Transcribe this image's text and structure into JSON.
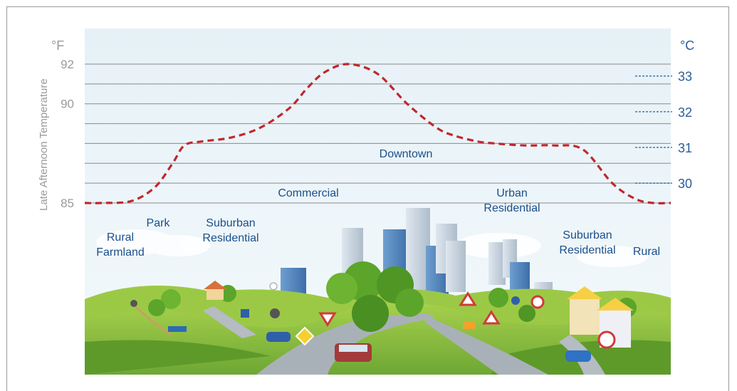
{
  "chart_data": {
    "type": "line",
    "ylabel": "Late Afternoon Temperature",
    "y_unit_left": "°F",
    "y_unit_right": "°C",
    "ylim": [
      85,
      92
    ],
    "y_ticks_left": [
      "85",
      "90",
      "92"
    ],
    "y_ticks_right": [
      "30",
      "31",
      "32",
      "33"
    ],
    "grid": true,
    "line_color": "#c0282d",
    "line_style": "dashed",
    "x": [
      0,
      3,
      8,
      12,
      15,
      17,
      20,
      25,
      30,
      35,
      38,
      41,
      45,
      50,
      55,
      60,
      63,
      67,
      70,
      75,
      80,
      85,
      90,
      94,
      97,
      100
    ],
    "series": [
      {
        "values": [
          85,
          85,
          85.1,
          85.8,
          87.0,
          87.9,
          88.1,
          88.3,
          88.8,
          89.8,
          90.8,
          91.6,
          92.0,
          91.5,
          90.0,
          88.8,
          88.4,
          88.1,
          88.0,
          87.9,
          87.9,
          87.7,
          86.0,
          85.2,
          85.0,
          85.0
        ]
      }
    ],
    "annotations": [
      {
        "label": "Rural\nFarmland",
        "color": "#1a4f8a"
      },
      {
        "label": "Park",
        "color": "#1a4f8a"
      },
      {
        "label": "Suburban\nResidential",
        "color": "#1a4f8a"
      },
      {
        "label": "Commercial",
        "color": "#1a4f8a"
      },
      {
        "label": "Downtown",
        "color": "#1a4f8a"
      },
      {
        "label": "Urban\nResidential",
        "color": "#1a4f8a"
      },
      {
        "label": "Suburban\nResidential",
        "color": "#1a4f8a"
      },
      {
        "label": "Rural",
        "color": "#1a4f8a"
      }
    ]
  },
  "colors": {
    "sky": "#e7f2f8",
    "grass": "#8fc43f",
    "grass_dark": "#5e9a2a",
    "road": "#a9b1b8",
    "tick_left": "#9a9a9a",
    "tick_right": "#2a5d9a",
    "grid": "#8a8a8a"
  }
}
